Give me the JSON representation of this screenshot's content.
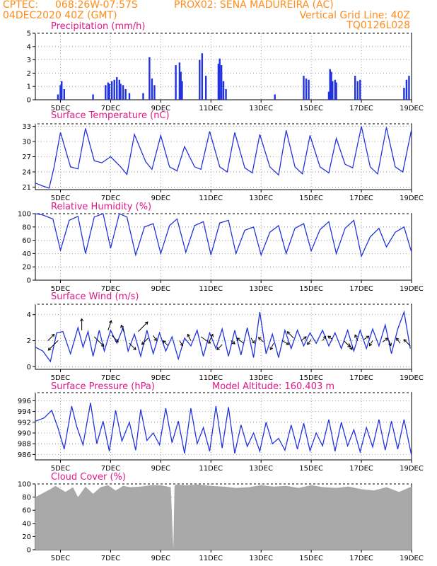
{
  "header": {
    "line1_left": "CPTEC:",
    "line1_coords": "068:26W-07:57S",
    "line1_station": "PROX02: SENA MADUREIRA (AC)",
    "line2_left": "04DEC2020 40Z (GMT)",
    "line2_right": "Vertical Grid Line: 40Z",
    "line3_right": "TQ0126L028"
  },
  "colors": {
    "header": "#ff8c1a",
    "title": "#e0188a",
    "line": "#2233dd",
    "bars": "#2233dd",
    "cloud": "#a9a9a9"
  },
  "x_axis": {
    "ticks": [
      "5DEC",
      "7DEC",
      "9DEC",
      "11DEC",
      "13DEC",
      "15DEC",
      "17DEC",
      "19DEC"
    ],
    "range_days": [
      4.0,
      19.0
    ]
  },
  "chart_data": [
    {
      "type": "bar",
      "title": "Precipitation (mm/h)",
      "ylim": [
        0,
        5
      ],
      "yticks": [
        "0",
        "1",
        "2",
        "3",
        "4",
        "5"
      ],
      "grid": true,
      "x_units": "day of December 2020",
      "x": [
        4.9,
        5.0,
        5.05,
        5.15,
        6.3,
        6.8,
        6.9,
        6.95,
        7.05,
        7.15,
        7.25,
        7.35,
        7.4,
        7.5,
        7.6,
        7.75,
        8.3,
        8.55,
        8.65,
        8.75,
        9.6,
        9.75,
        9.8,
        9.85,
        10.55,
        10.65,
        10.8,
        11.3,
        11.35,
        11.42,
        11.5,
        11.6,
        13.55,
        14.7,
        14.8,
        14.9,
        15.7,
        15.75,
        15.8,
        15.85,
        15.95,
        16.0,
        16.75,
        16.85,
        16.95,
        18.7,
        18.8,
        18.9
      ],
      "values": [
        0.4,
        1.1,
        1.4,
        0.8,
        0.4,
        1.1,
        1.3,
        1.2,
        1.4,
        1.5,
        1.7,
        1.5,
        1.2,
        1.1,
        0.8,
        0.5,
        0.5,
        3.2,
        1.6,
        1.1,
        2.6,
        2.8,
        2.1,
        1.4,
        3.0,
        3.5,
        1.8,
        2.7,
        3.1,
        2.6,
        1.4,
        0.8,
        0.4,
        1.8,
        1.6,
        1.5,
        0.6,
        2.3,
        2.1,
        1.4,
        1.5,
        1.3,
        1.8,
        1.4,
        1.5,
        0.9,
        1.5,
        1.8
      ]
    },
    {
      "type": "line",
      "title": "Surface Temperature (nC)",
      "ylim": [
        20.5,
        33.5
      ],
      "yticks": [
        "21",
        "24",
        "27",
        "30",
        "33"
      ],
      "grid": true,
      "x_units": "day of December 2020",
      "x": [
        4.0,
        4.3,
        4.55,
        4.75,
        5.0,
        5.4,
        5.7,
        6.0,
        6.35,
        6.65,
        7.0,
        7.4,
        7.65,
        7.95,
        8.4,
        8.65,
        9.0,
        9.35,
        9.65,
        9.95,
        10.35,
        10.6,
        10.95,
        11.35,
        11.65,
        11.95,
        12.35,
        12.65,
        12.95,
        13.35,
        13.7,
        14.0,
        14.35,
        14.65,
        14.95,
        15.35,
        15.7,
        16.0,
        16.35,
        16.65,
        17.0,
        17.35,
        17.65,
        18.0,
        18.35,
        18.65,
        19.0
      ],
      "values": [
        21.8,
        21.2,
        20.8,
        25.0,
        31.8,
        25.0,
        24.6,
        32.6,
        26.2,
        25.8,
        27.0,
        25.0,
        23.5,
        31.4,
        26.0,
        24.5,
        31.2,
        25.0,
        24.2,
        29.0,
        25.0,
        24.5,
        32.0,
        25.0,
        24.0,
        31.8,
        24.8,
        23.8,
        31.4,
        25.0,
        23.4,
        32.2,
        25.0,
        23.6,
        31.2,
        25.0,
        23.8,
        30.6,
        25.5,
        24.8,
        33.0,
        25.0,
        23.6,
        32.8,
        25.0,
        24.0,
        32.4
      ]
    },
    {
      "type": "line",
      "title": "Relative Humidity (%)",
      "ylim": [
        0,
        100
      ],
      "yticks": [
        "0",
        "20",
        "40",
        "60",
        "80",
        "100"
      ],
      "grid": true,
      "x_units": "day of December 2020",
      "x": [
        4.0,
        4.3,
        4.7,
        5.0,
        5.35,
        5.7,
        6.0,
        6.35,
        6.7,
        7.0,
        7.35,
        7.65,
        8.0,
        8.35,
        8.7,
        9.0,
        9.35,
        9.65,
        10.0,
        10.35,
        10.7,
        11.0,
        11.35,
        11.7,
        12.0,
        12.35,
        12.7,
        13.0,
        13.35,
        13.7,
        14.0,
        14.35,
        14.7,
        15.0,
        15.35,
        15.7,
        16.0,
        16.35,
        16.7,
        17.0,
        17.35,
        17.7,
        18.0,
        18.35,
        18.7,
        19.0
      ],
      "values": [
        100,
        98,
        92,
        45,
        90,
        96,
        40,
        95,
        100,
        48,
        100,
        95,
        38,
        80,
        85,
        40,
        82,
        92,
        42,
        82,
        88,
        38,
        86,
        90,
        40,
        75,
        80,
        38,
        72,
        82,
        40,
        78,
        85,
        44,
        76,
        88,
        40,
        78,
        90,
        36,
        65,
        78,
        50,
        72,
        80,
        42
      ]
    },
    {
      "type": "line",
      "title": "Surface Wind (m/s)",
      "ylim": [
        -0.2,
        4.8
      ],
      "yticks": [
        "0",
        "2",
        "4"
      ],
      "grid": true,
      "x_units": "day of December 2020",
      "x": [
        4.0,
        4.3,
        4.6,
        4.85,
        5.1,
        5.4,
        5.7,
        5.9,
        6.1,
        6.3,
        6.55,
        6.75,
        7.0,
        7.25,
        7.5,
        7.7,
        7.95,
        8.2,
        8.45,
        8.7,
        8.95,
        9.2,
        9.45,
        9.7,
        9.95,
        10.2,
        10.45,
        10.7,
        10.95,
        11.2,
        11.45,
        11.7,
        11.95,
        12.2,
        12.45,
        12.7,
        12.95,
        13.2,
        13.45,
        13.7,
        13.95,
        14.2,
        14.45,
        14.7,
        14.95,
        15.2,
        15.45,
        15.7,
        15.95,
        16.2,
        16.45,
        16.7,
        16.95,
        17.2,
        17.45,
        17.7,
        17.95,
        18.2,
        18.45,
        18.7,
        18.95
      ],
      "values": [
        1.5,
        1.2,
        0.4,
        2.6,
        2.7,
        1.0,
        3.0,
        1.5,
        2.7,
        0.8,
        2.8,
        1.2,
        2.8,
        1.8,
        3.0,
        1.2,
        2.5,
        0.8,
        2.8,
        1.0,
        2.6,
        1.2,
        2.3,
        0.6,
        2.2,
        1.6,
        2.8,
        0.8,
        2.6,
        1.4,
        2.9,
        0.8,
        2.8,
        0.9,
        3.0,
        0.7,
        4.2,
        1.0,
        2.5,
        0.7,
        2.8,
        1.4,
        2.8,
        1.6,
        2.6,
        1.8,
        2.8,
        1.6,
        2.6,
        1.4,
        2.8,
        1.2,
        2.8,
        1.4,
        2.9,
        1.6,
        3.2,
        1.0,
        2.9,
        4.2,
        1.4
      ],
      "vector_days": [
        4.5,
        4.9,
        5.85,
        6.35,
        6.9,
        7.05,
        7.55,
        7.75,
        8.1,
        8.5,
        8.7,
        9.3,
        9.75,
        10.2,
        10.6,
        10.95,
        11.45,
        11.8,
        12.3,
        12.6,
        13.1,
        13.5,
        13.85,
        14.3,
        14.6,
        15.0,
        15.45,
        15.85,
        16.3,
        16.5,
        16.85,
        17.1,
        17.45,
        17.85,
        18.1,
        18.55,
        18.95
      ],
      "vector_level": [
        2.0,
        2.0,
        2.8,
        2.3,
        2.8,
        2.4,
        2.6,
        1.8,
        2.7,
        2.2,
        2.4,
        1.6,
        2.0,
        2.0,
        2.3,
        2.0,
        1.7,
        2.0,
        1.8,
        2.2,
        1.9,
        1.8,
        2.0,
        2.2,
        2.0,
        2.1,
        2.0,
        2.1,
        2.0,
        1.8,
        2.0,
        2.1,
        2.0,
        1.9,
        2.0,
        1.8,
        1.6
      ],
      "vector_u": [
        1.0,
        -1.5,
        0.0,
        1.5,
        0.5,
        1.0,
        -0.5,
        1.0,
        1.5,
        -1.0,
        0.5,
        -0.8,
        0.5,
        -0.5,
        1.5,
        0.5,
        -0.8,
        0.6,
        -1.0,
        0.5,
        -0.8,
        -0.5,
        1.0,
        -1.0,
        0.8,
        -0.6,
        0.5,
        -0.7,
        1.0,
        0.5,
        -0.4,
        0.8,
        -0.5,
        0.8,
        0.3,
        -0.6,
        -1.0
      ],
      "vector_v": [
        1.0,
        -1.5,
        1.8,
        -1.5,
        1.5,
        -1.0,
        1.2,
        -1.0,
        1.5,
        -1.0,
        -0.8,
        0.8,
        -0.8,
        1.0,
        -1.0,
        1.0,
        -0.8,
        -0.5,
        0.8,
        -0.8,
        0.7,
        -1.0,
        -0.6,
        1.0,
        0.6,
        -0.8,
        0.7,
        0.5,
        -1.0,
        -1.0,
        0.9,
        0.5,
        -0.8,
        0.6,
        -0.8,
        0.8,
        1.0
      ]
    },
    {
      "type": "line",
      "title": "Surface Pressure (hPa)",
      "annotation": "Model Altitude: 160.403 m",
      "ylim": [
        985.0,
        997.5
      ],
      "yticks": [
        "986",
        "988",
        "990",
        "992",
        "994",
        "996"
      ],
      "grid": true,
      "x_units": "day of December 2020",
      "x": [
        4.0,
        4.35,
        4.65,
        4.9,
        5.15,
        5.45,
        5.65,
        5.9,
        6.2,
        6.45,
        6.7,
        6.95,
        7.2,
        7.45,
        7.75,
        8.0,
        8.2,
        8.45,
        8.7,
        8.95,
        9.2,
        9.45,
        9.7,
        9.95,
        10.2,
        10.45,
        10.7,
        10.95,
        11.2,
        11.45,
        11.7,
        11.95,
        12.2,
        12.45,
        12.7,
        12.95,
        13.2,
        13.45,
        13.7,
        13.95,
        14.2,
        14.45,
        14.7,
        14.95,
        15.2,
        15.45,
        15.7,
        15.95,
        16.2,
        16.45,
        16.7,
        16.95,
        17.2,
        17.45,
        17.7,
        17.95,
        18.2,
        18.45,
        18.7,
        19.0
      ],
      "values": [
        992.2,
        992.8,
        994.2,
        991.0,
        987.0,
        995.0,
        991.2,
        987.8,
        995.6,
        988.0,
        992.2,
        986.6,
        994.2,
        988.5,
        992.0,
        986.8,
        994.4,
        988.6,
        990.0,
        987.8,
        994.6,
        988.2,
        992.2,
        986.2,
        994.6,
        988.0,
        991.0,
        986.6,
        995.0,
        987.2,
        994.8,
        986.2,
        991.5,
        987.5,
        990.0,
        986.6,
        992.0,
        988.0,
        989.0,
        986.8,
        991.5,
        987.0,
        991.8,
        986.7,
        990.0,
        987.6,
        992.5,
        986.6,
        992.0,
        987.6,
        990.6,
        986.5,
        991.0,
        987.4,
        992.5,
        986.8,
        992.2,
        987.0,
        992.5,
        985.8
      ]
    },
    {
      "type": "area",
      "title": "Cloud Cover (%)",
      "ylim": [
        0,
        100
      ],
      "yticks": [
        "0",
        "20",
        "40",
        "60",
        "80",
        "100"
      ],
      "grid": true,
      "x_units": "day of December 2020",
      "x": [
        4.0,
        4.3,
        4.6,
        4.8,
        5.2,
        5.5,
        5.7,
        6.0,
        6.3,
        6.6,
        6.9,
        7.2,
        7.5,
        7.8,
        8.2,
        8.6,
        9.0,
        9.4,
        9.5,
        9.55,
        9.6,
        10.0,
        10.5,
        11.0,
        11.5,
        12.0,
        12.5,
        13.0,
        13.5,
        14.0,
        14.5,
        15.0,
        15.5,
        16.0,
        16.5,
        17.0,
        17.5,
        18.0,
        18.5,
        19.0
      ],
      "values": [
        80,
        86,
        92,
        97,
        88,
        95,
        80,
        96,
        85,
        95,
        98,
        90,
        97,
        95,
        96,
        98,
        98,
        95,
        1,
        96,
        99,
        98,
        99,
        97,
        96,
        94,
        95,
        98,
        96,
        97,
        94,
        98,
        95,
        94,
        96,
        92,
        90,
        95,
        88,
        96
      ]
    }
  ]
}
